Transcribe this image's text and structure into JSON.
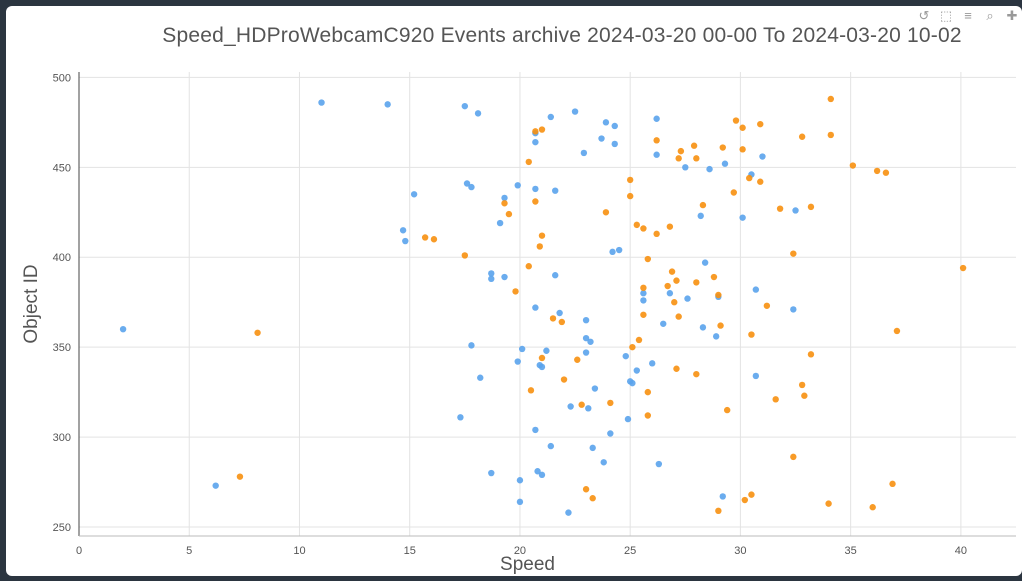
{
  "modebar": {
    "icons": [
      "reset-icon",
      "box-select-icon",
      "compare-icon",
      "zoom-icon",
      "pan-icon"
    ]
  },
  "chart_data": {
    "type": "scatter",
    "title": "Speed_HDProWebcamC920 Events archive 2024-03-20 00-00 To 2024-03-20 10-02",
    "xlabel": "Speed",
    "ylabel": "Object ID",
    "xlim": [
      0,
      42.5
    ],
    "ylim": [
      245,
      503
    ],
    "xticks": [
      0,
      5,
      10,
      15,
      20,
      25,
      30,
      35,
      40
    ],
    "yticks": [
      250,
      300,
      350,
      400,
      450,
      500
    ],
    "grid": true,
    "series": [
      {
        "color": "#5aa3ec",
        "points": [
          [
            2.0,
            360
          ],
          [
            6.2,
            273
          ],
          [
            11.0,
            486
          ],
          [
            14.0,
            485
          ],
          [
            14.7,
            415
          ],
          [
            14.8,
            409
          ],
          [
            15.2,
            435
          ],
          [
            17.3,
            311
          ],
          [
            17.5,
            484
          ],
          [
            17.6,
            441
          ],
          [
            17.8,
            439
          ],
          [
            17.8,
            351
          ],
          [
            18.1,
            480
          ],
          [
            18.2,
            333
          ],
          [
            18.7,
            391
          ],
          [
            18.7,
            388
          ],
          [
            18.7,
            280
          ],
          [
            19.1,
            419
          ],
          [
            19.3,
            433
          ],
          [
            19.3,
            389
          ],
          [
            19.9,
            342
          ],
          [
            19.9,
            440
          ],
          [
            20.0,
            276
          ],
          [
            20.0,
            264
          ],
          [
            20.1,
            349
          ],
          [
            20.7,
            469
          ],
          [
            20.7,
            464
          ],
          [
            20.7,
            438
          ],
          [
            20.7,
            372
          ],
          [
            20.7,
            304
          ],
          [
            20.8,
            281
          ],
          [
            20.9,
            340
          ],
          [
            21.0,
            339
          ],
          [
            21.0,
            279
          ],
          [
            21.2,
            348
          ],
          [
            21.4,
            478
          ],
          [
            21.4,
            295
          ],
          [
            21.6,
            437
          ],
          [
            21.6,
            390
          ],
          [
            21.8,
            369
          ],
          [
            22.2,
            258
          ],
          [
            22.3,
            317
          ],
          [
            22.5,
            481
          ],
          [
            22.9,
            458
          ],
          [
            23.0,
            355
          ],
          [
            23.0,
            347
          ],
          [
            23.0,
            365
          ],
          [
            23.1,
            316
          ],
          [
            23.2,
            353
          ],
          [
            23.3,
            294
          ],
          [
            23.4,
            327
          ],
          [
            23.7,
            466
          ],
          [
            23.8,
            286
          ],
          [
            23.9,
            475
          ],
          [
            24.1,
            302
          ],
          [
            24.2,
            403
          ],
          [
            24.3,
            463
          ],
          [
            24.3,
            473
          ],
          [
            24.5,
            404
          ],
          [
            24.8,
            345
          ],
          [
            24.9,
            310
          ],
          [
            25.0,
            331
          ],
          [
            25.1,
            330
          ],
          [
            25.3,
            337
          ],
          [
            25.6,
            376
          ],
          [
            25.6,
            380
          ],
          [
            26.0,
            341
          ],
          [
            26.2,
            477
          ],
          [
            26.2,
            457
          ],
          [
            26.3,
            285
          ],
          [
            26.5,
            363
          ],
          [
            26.8,
            380
          ],
          [
            27.5,
            450
          ],
          [
            27.6,
            377
          ],
          [
            28.2,
            423
          ],
          [
            28.3,
            361
          ],
          [
            28.4,
            397
          ],
          [
            28.6,
            449
          ],
          [
            28.9,
            356
          ],
          [
            29.0,
            378
          ],
          [
            29.2,
            267
          ],
          [
            29.3,
            452
          ],
          [
            30.1,
            422
          ],
          [
            30.5,
            446
          ],
          [
            30.7,
            382
          ],
          [
            30.7,
            334
          ],
          [
            31.0,
            456
          ],
          [
            32.4,
            371
          ],
          [
            32.5,
            426
          ]
        ]
      },
      {
        "color": "#f7900f",
        "points": [
          [
            7.3,
            278
          ],
          [
            8.1,
            358
          ],
          [
            15.7,
            411
          ],
          [
            16.1,
            410
          ],
          [
            17.5,
            401
          ],
          [
            19.3,
            430
          ],
          [
            19.5,
            424
          ],
          [
            19.8,
            381
          ],
          [
            20.4,
            453
          ],
          [
            20.4,
            395
          ],
          [
            20.5,
            326
          ],
          [
            20.7,
            470
          ],
          [
            20.7,
            431
          ],
          [
            20.9,
            406
          ],
          [
            21.0,
            344
          ],
          [
            21.0,
            412
          ],
          [
            21.0,
            471
          ],
          [
            21.5,
            366
          ],
          [
            21.9,
            364
          ],
          [
            22.0,
            332
          ],
          [
            22.6,
            343
          ],
          [
            22.8,
            318
          ],
          [
            23.0,
            271
          ],
          [
            23.3,
            266
          ],
          [
            23.9,
            425
          ],
          [
            24.1,
            319
          ],
          [
            25.0,
            443
          ],
          [
            25.0,
            434
          ],
          [
            25.1,
            350
          ],
          [
            25.3,
            418
          ],
          [
            25.4,
            354
          ],
          [
            25.6,
            383
          ],
          [
            25.6,
            368
          ],
          [
            25.6,
            416
          ],
          [
            25.8,
            325
          ],
          [
            25.8,
            312
          ],
          [
            25.8,
            399
          ],
          [
            26.2,
            413
          ],
          [
            26.2,
            465
          ],
          [
            26.7,
            384
          ],
          [
            26.8,
            417
          ],
          [
            26.9,
            392
          ],
          [
            27.0,
            375
          ],
          [
            27.1,
            387
          ],
          [
            27.1,
            338
          ],
          [
            27.2,
            367
          ],
          [
            27.2,
            455
          ],
          [
            27.3,
            459
          ],
          [
            27.9,
            462
          ],
          [
            28.0,
            455
          ],
          [
            28.0,
            386
          ],
          [
            28.0,
            335
          ],
          [
            28.3,
            429
          ],
          [
            28.8,
            389
          ],
          [
            29.0,
            379
          ],
          [
            29.0,
            259
          ],
          [
            29.1,
            362
          ],
          [
            29.2,
            461
          ],
          [
            29.4,
            315
          ],
          [
            29.7,
            436
          ],
          [
            29.8,
            476
          ],
          [
            30.1,
            460
          ],
          [
            30.1,
            472
          ],
          [
            30.2,
            265
          ],
          [
            30.4,
            444
          ],
          [
            30.5,
            357
          ],
          [
            30.5,
            268
          ],
          [
            30.9,
            474
          ],
          [
            30.9,
            442
          ],
          [
            31.2,
            373
          ],
          [
            31.6,
            321
          ],
          [
            31.8,
            427
          ],
          [
            32.4,
            402
          ],
          [
            32.4,
            289
          ],
          [
            32.8,
            467
          ],
          [
            32.8,
            329
          ],
          [
            32.9,
            323
          ],
          [
            33.2,
            428
          ],
          [
            33.2,
            346
          ],
          [
            34.0,
            263
          ],
          [
            34.1,
            488
          ],
          [
            34.1,
            468
          ],
          [
            35.1,
            451
          ],
          [
            36.0,
            261
          ],
          [
            36.2,
            448
          ],
          [
            36.6,
            447
          ],
          [
            36.9,
            274
          ],
          [
            37.1,
            359
          ],
          [
            40.1,
            394
          ]
        ]
      }
    ]
  }
}
